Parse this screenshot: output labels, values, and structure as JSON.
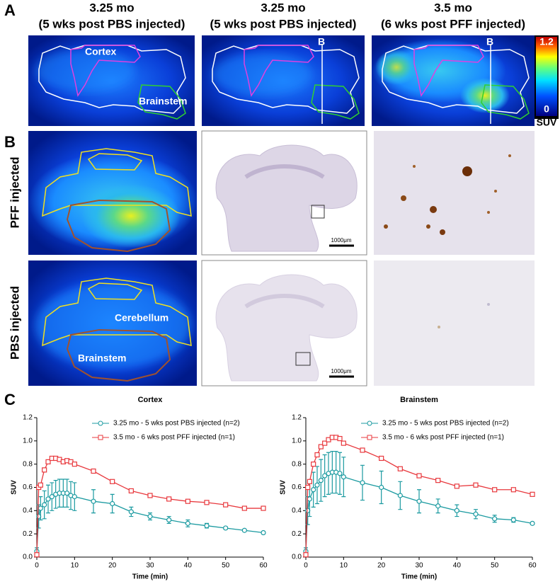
{
  "panels": {
    "a": "A",
    "b": "B",
    "c": "C"
  },
  "panel_a": {
    "columns": [
      {
        "title": "3.25 mo",
        "subtitle": "(5 wks post PBS injected)"
      },
      {
        "title": "3.25 mo",
        "subtitle": "(5 wks post PBS injected)"
      },
      {
        "title": "3.5 mo",
        "subtitle": "(6 wks post PFF injected)"
      }
    ],
    "labels": {
      "cortex": "Cortex",
      "brainstem": "Brainstem"
    },
    "section_markers": [
      "B",
      "B"
    ],
    "colorbar": {
      "max": "1.2",
      "min": "0",
      "unit": "SUV"
    }
  },
  "panel_b": {
    "rows": [
      "PFF injected",
      "PBS injected"
    ],
    "labels": {
      "cerebellum": "Cerebellum",
      "brainstem": "Brainstem"
    },
    "scale_bars": [
      "1000μm",
      "1000μm"
    ]
  },
  "chart_data": [
    {
      "type": "line",
      "title": "Cortex",
      "x_label": "Time (min)",
      "y_label": "SUV",
      "x": [
        0,
        0.5,
        1,
        2,
        3,
        4,
        5,
        6,
        7,
        8,
        9,
        10,
        15,
        20,
        25,
        30,
        35,
        40,
        45,
        50,
        55,
        60
      ],
      "series": [
        {
          "name": "3.25 mo - 5 wks post PBS injected (n=2)",
          "color": "#1a9aa0",
          "marker": "circle",
          "values": [
            0.05,
            0.35,
            0.42,
            0.45,
            0.5,
            0.52,
            0.54,
            0.55,
            0.55,
            0.55,
            0.53,
            0.52,
            0.48,
            0.46,
            0.39,
            0.35,
            0.32,
            0.29,
            0.27,
            0.25,
            0.23,
            0.21
          ],
          "errors": [
            0.03,
            0.1,
            0.1,
            0.12,
            0.12,
            0.12,
            0.12,
            0.12,
            0.12,
            0.12,
            0.12,
            0.12,
            0.1,
            0.08,
            0.04,
            0.03,
            0.03,
            0.03,
            0.02,
            0.01,
            0.01,
            0.01
          ]
        },
        {
          "name": "3.5 mo - 6 wks post PFF injected (n=1)",
          "color": "#e8383d",
          "marker": "square",
          "values": [
            0.02,
            0.6,
            0.62,
            0.75,
            0.82,
            0.85,
            0.85,
            0.84,
            0.82,
            0.83,
            0.82,
            0.8,
            0.74,
            0.65,
            0.57,
            0.53,
            0.5,
            0.48,
            0.47,
            0.45,
            0.42,
            0.42
          ]
        }
      ],
      "xlim": [
        0,
        60
      ],
      "xticks": [
        0,
        10,
        20,
        30,
        40,
        50,
        60
      ],
      "ylim": [
        0,
        1.2
      ],
      "yticks": [
        {
          "value": 0,
          "label": "0.0"
        },
        0.2,
        0.4,
        0.6,
        0.8,
        {
          "value": 1,
          "label": "1.0"
        },
        1.2
      ],
      "legend": "top"
    },
    {
      "type": "line",
      "title": "Brainstem",
      "x_label": "Time (min)",
      "y_label": "SUV",
      "x": [
        0,
        0.5,
        1,
        2,
        3,
        4,
        5,
        6,
        7,
        8,
        9,
        10,
        15,
        20,
        25,
        30,
        35,
        40,
        45,
        50,
        55,
        60
      ],
      "series": [
        {
          "name": "3.25 mo - 5 wks post PBS injected (n=2)",
          "color": "#1a9aa0",
          "marker": "circle",
          "values": [
            0.05,
            0.4,
            0.5,
            0.58,
            0.62,
            0.66,
            0.7,
            0.72,
            0.73,
            0.73,
            0.72,
            0.69,
            0.64,
            0.6,
            0.53,
            0.48,
            0.44,
            0.4,
            0.37,
            0.33,
            0.32,
            0.29
          ],
          "errors": [
            0.03,
            0.12,
            0.15,
            0.15,
            0.16,
            0.18,
            0.18,
            0.18,
            0.18,
            0.18,
            0.18,
            0.17,
            0.15,
            0.14,
            0.12,
            0.1,
            0.06,
            0.05,
            0.04,
            0.03,
            0.02,
            0.01
          ]
        },
        {
          "name": "3.5 mo - 6 wks post PFF injected (n=1)",
          "color": "#e8383d",
          "marker": "square",
          "values": [
            0.02,
            0.6,
            0.65,
            0.8,
            0.88,
            0.95,
            0.98,
            1.01,
            1.03,
            1.03,
            1.02,
            0.98,
            0.92,
            0.85,
            0.76,
            0.7,
            0.66,
            0.61,
            0.62,
            0.58,
            0.58,
            0.54
          ]
        }
      ],
      "xlim": [
        0,
        60
      ],
      "xticks": [
        0,
        10,
        20,
        30,
        40,
        50,
        60
      ],
      "ylim": [
        0,
        1.2
      ],
      "yticks": [
        {
          "value": 0,
          "label": "0.0"
        },
        0.2,
        0.4,
        0.6,
        0.8,
        {
          "value": 1,
          "label": "1.0"
        },
        1.2
      ],
      "legend": "top"
    }
  ]
}
